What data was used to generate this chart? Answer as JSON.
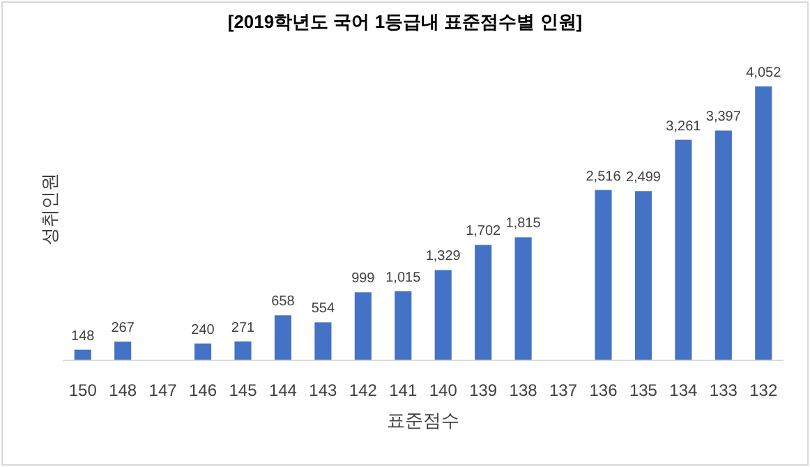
{
  "chart_data": {
    "type": "bar",
    "title": "[2019학년도 국어 1등급내 표준점수별 인원]",
    "xlabel": "표준점수",
    "ylabel": "성취인원",
    "categories": [
      "150",
      "148",
      "147",
      "146",
      "145",
      "144",
      "143",
      "142",
      "141",
      "140",
      "139",
      "138",
      "137",
      "136",
      "135",
      "134",
      "133",
      "132"
    ],
    "values": [
      148,
      267,
      null,
      240,
      271,
      658,
      554,
      999,
      1015,
      1329,
      1702,
      1815,
      null,
      2516,
      2499,
      3261,
      3397,
      4052
    ],
    "value_labels": [
      "148",
      "267",
      null,
      "240",
      "271",
      "658",
      "554",
      "999",
      "1,015",
      "1,329",
      "1,702",
      "1,815",
      null,
      "2,516",
      "2,499",
      "3,261",
      "3,397",
      "4,052"
    ],
    "color": "#4472c4"
  }
}
